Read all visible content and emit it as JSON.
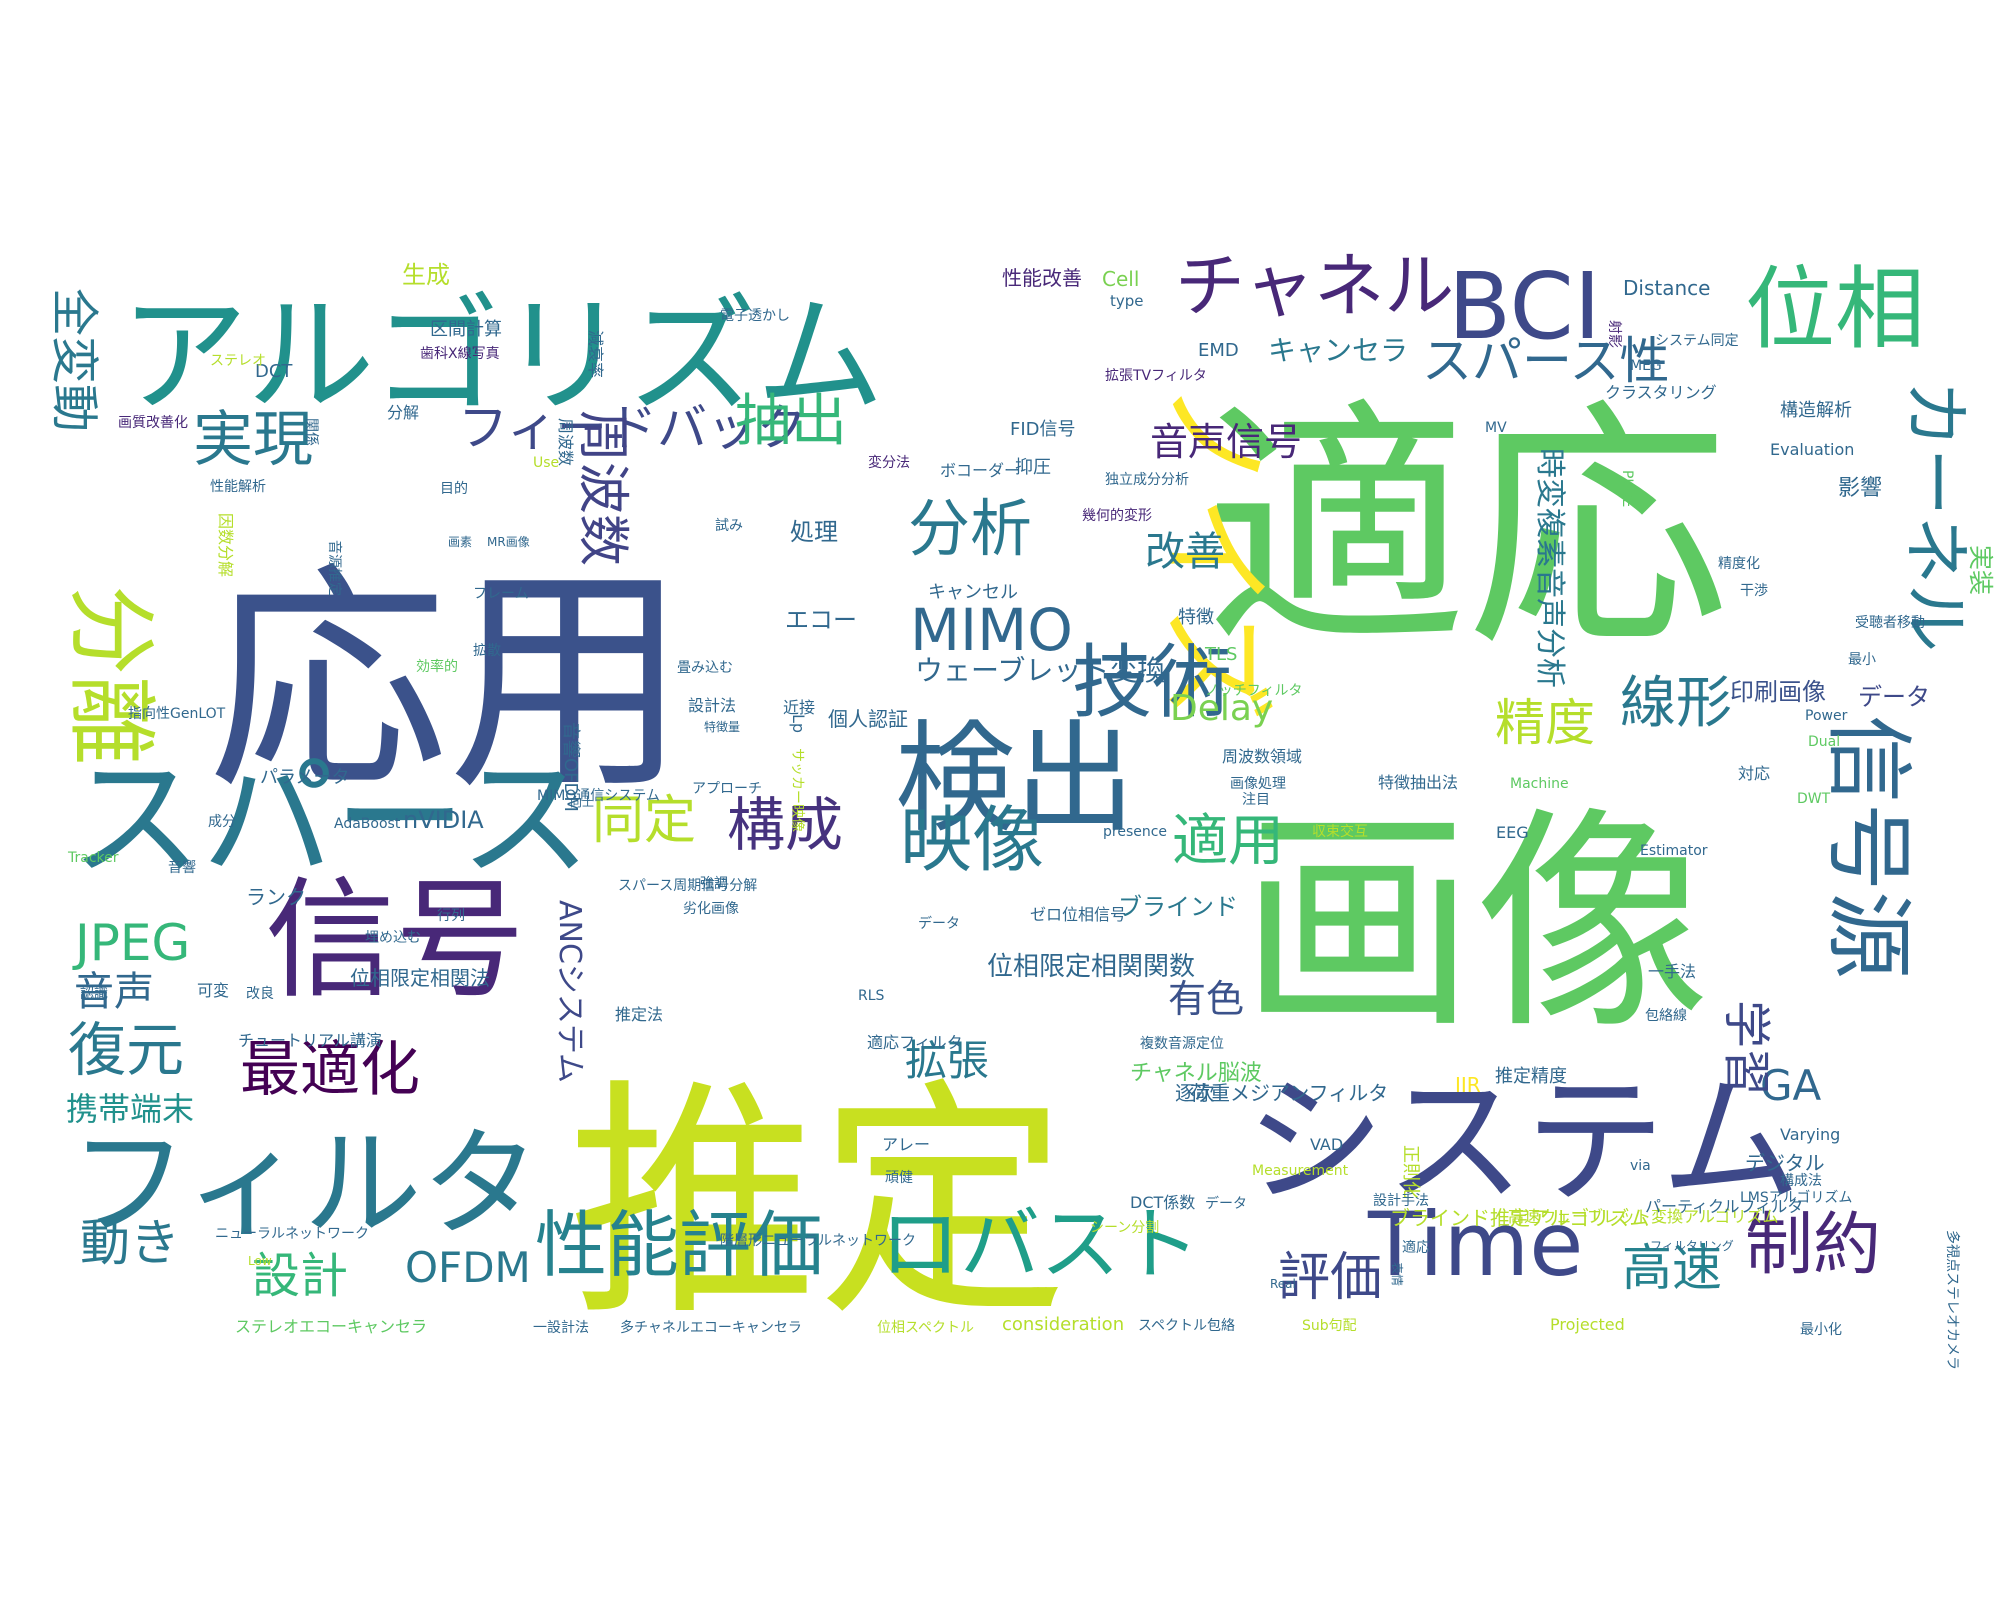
{
  "words": [
    {
      "text": "適応",
      "color": "#5ec962"
    },
    {
      "text": "応用",
      "color": "#3b528b"
    },
    {
      "text": "画像",
      "color": "#5ec962"
    },
    {
      "text": "推定",
      "color": "#c8e020"
    },
    {
      "text": "アルゴリズム",
      "color": "#21918c"
    },
    {
      "text": "ノイズ",
      "color": "#fde725"
    },
    {
      "text": "システム",
      "color": "#3e4989"
    },
    {
      "text": "スパース",
      "color": "#2a788e"
    },
    {
      "text": "フィルタ",
      "color": "#2a788e"
    },
    {
      "text": "信号",
      "color": "#482878"
    },
    {
      "text": "検出",
      "color": "#31688e"
    },
    {
      "text": "分離",
      "color": "#b5de2b"
    },
    {
      "text": "BCI",
      "color": "#3e4989"
    },
    {
      "text": "位相",
      "color": "#35b779"
    },
    {
      "text": "チャネル",
      "color": "#482878"
    },
    {
      "text": "信号源",
      "color": "#31688e"
    },
    {
      "text": "カーネル",
      "color": "#2a788e"
    },
    {
      "text": "ロバスト",
      "color": "#1f9e89"
    },
    {
      "text": "Time",
      "color": "#3e4989"
    },
    {
      "text": "性能評価",
      "color": "#26828e"
    },
    {
      "text": "技術",
      "color": "#31688e"
    },
    {
      "text": "構成",
      "color": "#46327e"
    },
    {
      "text": "映像",
      "color": "#2a788e"
    },
    {
      "text": "フィードバック",
      "color": "#3e4989"
    },
    {
      "text": "MIMO",
      "color": "#31688e"
    },
    {
      "text": "分析",
      "color": "#2a788e"
    },
    {
      "text": "抽出",
      "color": "#35b779"
    },
    {
      "text": "スパース性",
      "color": "#31688e"
    },
    {
      "text": "実現",
      "color": "#2a788e"
    },
    {
      "text": "全変動",
      "color": "#2a788e"
    },
    {
      "text": "周波数",
      "color": "#414487"
    },
    {
      "text": "最適化",
      "color": "#440154"
    },
    {
      "text": "復元",
      "color": "#2a788e"
    },
    {
      "text": "JPEG",
      "color": "#35b779"
    },
    {
      "text": "制約",
      "color": "#482878"
    },
    {
      "text": "高速",
      "color": "#26828e"
    },
    {
      "text": "線形",
      "color": "#2a788e"
    },
    {
      "text": "精度",
      "color": "#b5de2b"
    },
    {
      "text": "適用",
      "color": "#35b779"
    },
    {
      "text": "同定",
      "color": "#b5de2b"
    },
    {
      "text": "動き",
      "color": "#2a788e"
    },
    {
      "text": "設計",
      "color": "#35b779"
    },
    {
      "text": "OFDM",
      "color": "#2a788e"
    },
    {
      "text": "音声",
      "color": "#31688e"
    },
    {
      "text": "評価",
      "color": "#3e4989"
    },
    {
      "text": "GA",
      "color": "#31688e"
    },
    {
      "text": "学習",
      "color": "#3e4989"
    },
    {
      "text": "実装",
      "color": "#5ec962"
    },
    {
      "text": "改善",
      "color": "#2a788e"
    },
    {
      "text": "音声信号",
      "color": "#482878"
    },
    {
      "text": "Delay",
      "color": "#7ad151"
    },
    {
      "text": "携帯端末",
      "color": "#21918c"
    },
    {
      "text": "ANCシステム",
      "color": "#3e4989"
    },
    {
      "text": "拡張",
      "color": "#2a788e"
    },
    {
      "text": "有色",
      "color": "#3b528b"
    },
    {
      "text": "時変複素音声分析",
      "color": "#2a788e"
    },
    {
      "text": "ウェーブレット変換",
      "color": "#31688e"
    },
    {
      "text": "キャンセラ",
      "color": "#2a788e"
    },
    {
      "text": "印刷画像",
      "color": "#3b528b"
    },
    {
      "text": "データ",
      "color": "#3e4989"
    },
    {
      "text": "位相限定相関関数",
      "color": "#31688e"
    },
    {
      "text": "ブラインド",
      "color": "#2a788e"
    },
    {
      "text": "位相限定相関法",
      "color": "#31688e"
    },
    {
      "text": "nVIDIA",
      "color": "#31688e"
    },
    {
      "text": "チャネル脳波",
      "color": "#5ec962"
    },
    {
      "text": "処理",
      "color": "#31688e"
    },
    {
      "text": "エコー",
      "color": "#31688e"
    },
    {
      "text": "影響",
      "color": "#31688e"
    },
    {
      "text": "生成",
      "color": "#b5de2b"
    },
    {
      "text": "Distance",
      "color": "#31688e"
    },
    {
      "text": "Cell",
      "color": "#7ad151"
    },
    {
      "text": "性能改善",
      "color": "#482878"
    },
    {
      "text": "type",
      "color": "#31688e"
    },
    {
      "text": "EMD",
      "color": "#31688e"
    },
    {
      "text": "DCT",
      "color": "#31688e"
    },
    {
      "text": "区間計算",
      "color": "#31688e"
    },
    {
      "text": "周波数",
      "color": "#31688e"
    },
    {
      "text": "減衰率",
      "color": "#31688e"
    },
    {
      "text": "電子透かし",
      "color": "#31688e"
    },
    {
      "text": "ステレオ",
      "color": "#b5de2b"
    },
    {
      "text": "歯科X線写真",
      "color": "#482878"
    },
    {
      "text": "拡張TVフィルタ",
      "color": "#482878"
    },
    {
      "text": "クラスタリング",
      "color": "#31688e"
    },
    {
      "text": "MEG",
      "color": "#31688e"
    },
    {
      "text": "構造解析",
      "color": "#31688e"
    },
    {
      "text": "システム同定",
      "color": "#31688e"
    },
    {
      "text": "射影",
      "color": "#482878"
    },
    {
      "text": "分解",
      "color": "#31688e"
    },
    {
      "text": "画質改善化",
      "color": "#482878"
    },
    {
      "text": "関係",
      "color": "#31688e"
    },
    {
      "text": "FID信号",
      "color": "#31688e"
    },
    {
      "text": "MV",
      "color": "#31688e"
    },
    {
      "text": "ボコーダー",
      "color": "#31688e"
    },
    {
      "text": "抑圧",
      "color": "#31688e"
    },
    {
      "text": "独立成分分析",
      "color": "#31688e"
    },
    {
      "text": "Evaluation",
      "color": "#31688e"
    },
    {
      "text": "変分法",
      "color": "#482878"
    },
    {
      "text": "Use",
      "color": "#b5de2b"
    },
    {
      "text": "目的",
      "color": "#31688e"
    },
    {
      "text": "性能解析",
      "color": "#31688e"
    },
    {
      "text": "PURE",
      "color": "#5ec962"
    },
    {
      "text": "幾何的変形",
      "color": "#482878"
    },
    {
      "text": "試み",
      "color": "#31688e"
    },
    {
      "text": "画素",
      "color": "#31688e"
    },
    {
      "text": "MR画像",
      "color": "#31688e"
    },
    {
      "text": "精度化",
      "color": "#31688e"
    },
    {
      "text": "フレーム",
      "color": "#31688e"
    },
    {
      "text": "キャンセル",
      "color": "#31688e"
    },
    {
      "text": "特徴",
      "color": "#31688e"
    },
    {
      "text": "干渉",
      "color": "#31688e"
    },
    {
      "text": "拡散",
      "color": "#31688e"
    },
    {
      "text": "畳み込む",
      "color": "#31688e"
    },
    {
      "text": "TLS",
      "color": "#5ec962"
    },
    {
      "text": "最小",
      "color": "#31688e"
    },
    {
      "text": "効率的",
      "color": "#5ec962"
    },
    {
      "text": "ノッチフィルタ",
      "color": "#5ec962"
    },
    {
      "text": "受聴者移動",
      "color": "#31688e"
    },
    {
      "text": "指向性GenLOT",
      "color": "#31688e"
    },
    {
      "text": "設計法",
      "color": "#31688e"
    },
    {
      "text": "近接",
      "color": "#31688e"
    },
    {
      "text": "Lp",
      "color": "#31688e"
    },
    {
      "text": "個人認証",
      "color": "#31688e"
    },
    {
      "text": "Power",
      "color": "#31688e"
    },
    {
      "text": "音響OFDM",
      "color": "#31688e"
    },
    {
      "text": "特徴量",
      "color": "#31688e"
    },
    {
      "text": "サッカー映像",
      "color": "#b5de2b"
    },
    {
      "text": "周波数領域",
      "color": "#31688e"
    },
    {
      "text": "Dual",
      "color": "#5ec962"
    },
    {
      "text": "パラメータ",
      "color": "#31688e"
    },
    {
      "text": "アプローチ",
      "color": "#31688e"
    },
    {
      "text": "画像処理",
      "color": "#31688e"
    },
    {
      "text": "特徴抽出法",
      "color": "#31688e"
    },
    {
      "text": "Machine",
      "color": "#5ec962"
    },
    {
      "text": "対応",
      "color": "#31688e"
    },
    {
      "text": "MIMO通信システム",
      "color": "#31688e"
    },
    {
      "text": "向上",
      "color": "#31688e"
    },
    {
      "text": "成分",
      "color": "#31688e"
    },
    {
      "text": "AdaBoost",
      "color": "#31688e"
    },
    {
      "text": "注目",
      "color": "#31688e"
    },
    {
      "text": "DWT",
      "color": "#5ec962"
    },
    {
      "text": "Tracker",
      "color": "#5ec962"
    },
    {
      "text": "音響",
      "color": "#31688e"
    },
    {
      "text": "presence",
      "color": "#31688e"
    },
    {
      "text": "収束交互",
      "color": "#b5de2b"
    },
    {
      "text": "EEG",
      "color": "#31688e"
    },
    {
      "text": "Estimator",
      "color": "#31688e"
    },
    {
      "text": "スパース周期信号分解",
      "color": "#31688e"
    },
    {
      "text": "強調",
      "color": "#31688e"
    },
    {
      "text": "ランク",
      "color": "#31688e"
    },
    {
      "text": "劣化画像",
      "color": "#31688e"
    },
    {
      "text": "ゼロ位相信号",
      "color": "#31688e"
    },
    {
      "text": "行列",
      "color": "#31688e"
    },
    {
      "text": "データ",
      "color": "#31688e"
    },
    {
      "text": "埋め込む",
      "color": "#31688e"
    },
    {
      "text": "認識",
      "color": "#31688e"
    },
    {
      "text": "可変",
      "color": "#31688e"
    },
    {
      "text": "一手法",
      "color": "#31688e"
    },
    {
      "text": "改良",
      "color": "#31688e"
    },
    {
      "text": "RLS",
      "color": "#31688e"
    },
    {
      "text": "推定法",
      "color": "#31688e"
    },
    {
      "text": "包絡線",
      "color": "#31688e"
    },
    {
      "text": "チュートリアル講演",
      "color": "#31688e"
    },
    {
      "text": "適応フィルタ",
      "color": "#31688e"
    },
    {
      "text": "複数音源定位",
      "color": "#31688e"
    },
    {
      "text": "推定精度",
      "color": "#31688e"
    },
    {
      "text": "IIR",
      "color": "#fde725"
    },
    {
      "text": "逐次",
      "color": "#31688e"
    },
    {
      "text": "荷重メジアンフィルタ",
      "color": "#31688e"
    },
    {
      "text": "Varying",
      "color": "#31688e"
    },
    {
      "text": "正則化",
      "color": "#b5de2b"
    },
    {
      "text": "アレー",
      "color": "#31688e"
    },
    {
      "text": "VAD",
      "color": "#31688e"
    },
    {
      "text": "デジタル",
      "color": "#31688e"
    },
    {
      "text": "via",
      "color": "#31688e"
    },
    {
      "text": "Measurement",
      "color": "#b5de2b"
    },
    {
      "text": "頑健",
      "color": "#31688e"
    },
    {
      "text": "設計手法",
      "color": "#31688e"
    },
    {
      "text": "構成法",
      "color": "#31688e"
    },
    {
      "text": "データ",
      "color": "#31688e"
    },
    {
      "text": "DCT係数",
      "color": "#31688e"
    },
    {
      "text": "高速ウェーブレット変換アルゴリズム",
      "color": "#b5de2b"
    },
    {
      "text": "ブラインド推定アルゴリズム",
      "color": "#b5de2b"
    },
    {
      "text": "パーティクルフィルタ",
      "color": "#31688e"
    },
    {
      "text": "LMSアルゴリズム",
      "color": "#31688e"
    },
    {
      "text": "適応",
      "color": "#31688e"
    },
    {
      "text": "フィルタリング",
      "color": "#31688e"
    },
    {
      "text": "シーン分割",
      "color": "#b5de2b"
    },
    {
      "text": "ニューラルネットワーク",
      "color": "#31688e"
    },
    {
      "text": "階層形ニューラルネットワーク",
      "color": "#31688e"
    },
    {
      "text": "Real",
      "color": "#31688e"
    },
    {
      "text": "Low",
      "color": "#b5de2b"
    },
    {
      "text": "ステレオエコーキャンセラ",
      "color": "#5ec962"
    },
    {
      "text": "一設計法",
      "color": "#31688e"
    },
    {
      "text": "多チャネルエコーキャンセラ",
      "color": "#31688e"
    },
    {
      "text": "位相スペクトル",
      "color": "#b5de2b"
    },
    {
      "text": "consideration",
      "color": "#b5de2b"
    },
    {
      "text": "スペクトル包絡",
      "color": "#31688e"
    },
    {
      "text": "Sub句配",
      "color": "#b5de2b"
    },
    {
      "text": "Projected",
      "color": "#b5de2b"
    },
    {
      "text": "最小化",
      "color": "#31688e"
    },
    {
      "text": "多視点ステレオカメラ",
      "color": "#31688e"
    },
    {
      "text": "表情",
      "color": "#31688e"
    },
    {
      "text": "因数分解",
      "color": "#b5de2b"
    },
    {
      "text": "音源推定",
      "color": "#31688e"
    }
  ]
}
